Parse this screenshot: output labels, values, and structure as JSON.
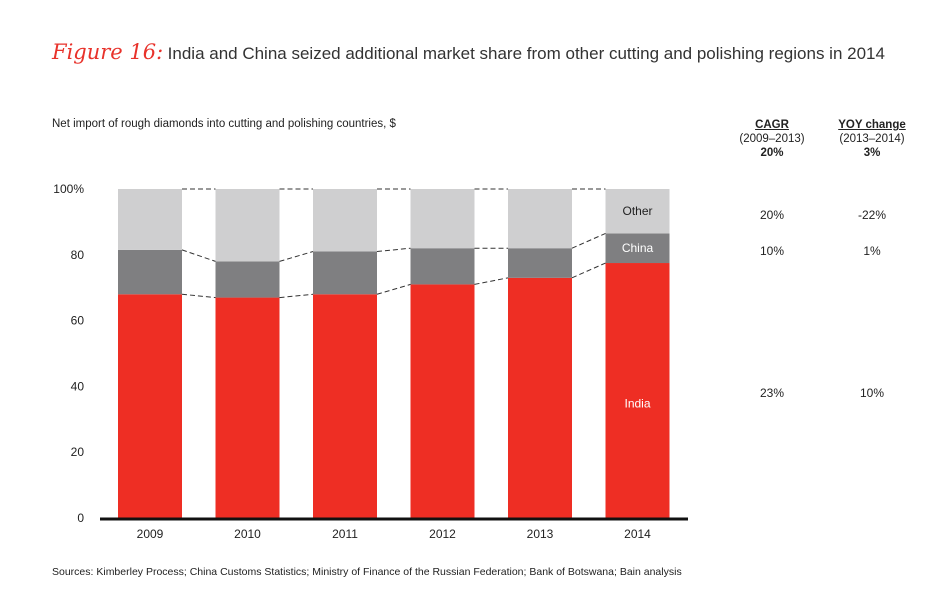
{
  "figure_label": "Figure 16:",
  "title": "India and China seized additional market share from other cutting and polishing regions in 2014",
  "subtitle": "Net import of rough diamonds into cutting and polishing countries, $",
  "source": "Sources: Kimberley Process; China Customs Statistics; Ministry of Finance of the Russian Federation; Bank of Botswana; Bain analysis",
  "table": {
    "cagr": {
      "header": "CAGR",
      "period": "(2009–2013)",
      "total": "20%"
    },
    "yoy": {
      "header": "YOY change",
      "period": "(2013–2014)",
      "total": "3%"
    },
    "rows": [
      {
        "segment": "Other",
        "cagr": "20%",
        "yoy": "-22%"
      },
      {
        "segment": "China",
        "cagr": "10%",
        "yoy": "1%"
      },
      {
        "segment": "India",
        "cagr": "23%",
        "yoy": "10%"
      }
    ]
  },
  "chart_data": {
    "type": "bar",
    "stacked": true,
    "percent_scale": true,
    "categories": [
      "2009",
      "2010",
      "2011",
      "2012",
      "2013",
      "2014"
    ],
    "y_ticks": [
      "0",
      "20",
      "40",
      "60",
      "80",
      "100%"
    ],
    "ylim": [
      0,
      100
    ],
    "series": [
      {
        "name": "India",
        "color": "#ee2e24",
        "values": [
          68,
          67,
          68,
          71,
          73,
          77.5
        ]
      },
      {
        "name": "China",
        "color": "#7f7f81",
        "values": [
          13.5,
          11,
          13,
          11,
          9,
          9
        ]
      },
      {
        "name": "Other",
        "color": "#cfcfd0",
        "values": [
          18.5,
          22,
          19,
          18,
          18,
          13.5
        ]
      }
    ],
    "label_year": "2014"
  }
}
